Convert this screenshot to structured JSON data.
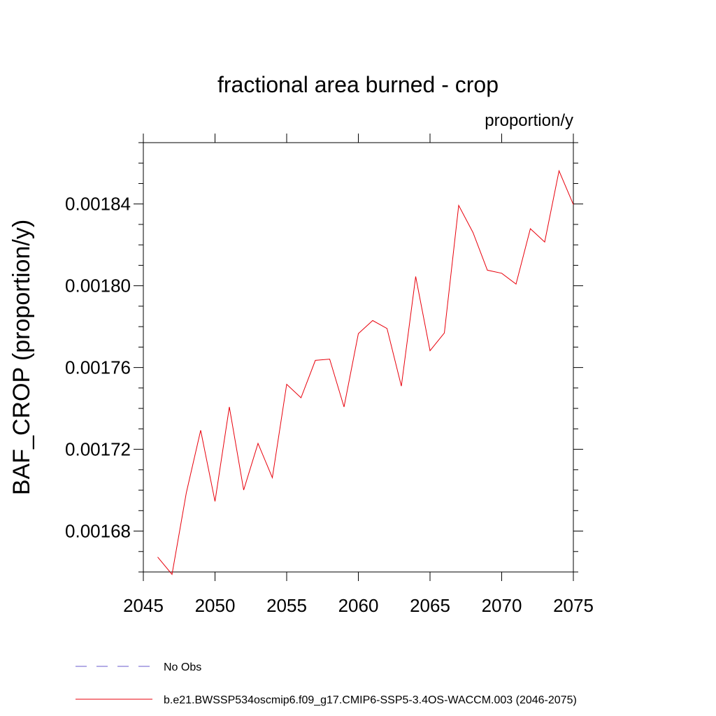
{
  "chart_data": {
    "type": "line",
    "title": "fractional area burned - crop",
    "units_label": "proportion/y",
    "xlabel": "",
    "ylabel": "BAF_CROP  (proportion/y)",
    "xlim": [
      2045,
      2075
    ],
    "ylim": [
      0.00166,
      0.00187
    ],
    "x_ticks": [
      2045,
      2050,
      2055,
      2060,
      2065,
      2070,
      2075
    ],
    "y_ticks": [
      0.00168,
      0.00172,
      0.00176,
      0.0018,
      0.00184
    ],
    "y_tick_labels": [
      "0.00168",
      "0.00172",
      "0.00176",
      "0.00180",
      "0.00184"
    ],
    "y_minor_step": 1e-05,
    "x_minor_step": 1,
    "series": [
      {
        "name": "b.e21.BWSSP534oscmip6.f09_g17.CMIP6-SSP5-3.4OS-WACCM.003 (2046-2075)",
        "color": "#e8000b",
        "dash": "solid",
        "x": [
          2046,
          2047,
          2048,
          2049,
          2050,
          2051,
          2052,
          2053,
          2054,
          2055,
          2056,
          2057,
          2058,
          2059,
          2060,
          2061,
          2062,
          2063,
          2064,
          2065,
          2066,
          2067,
          2068,
          2069,
          2070,
          2071,
          2072,
          2073,
          2074,
          2075
        ],
        "y": [
          0.0016673,
          0.0016588,
          0.0016988,
          0.0017293,
          0.0016945,
          0.0017407,
          0.0017001,
          0.0017229,
          0.0017061,
          0.0017518,
          0.0017452,
          0.0017635,
          0.0017641,
          0.0017407,
          0.0017766,
          0.001783,
          0.0017791,
          0.0017509,
          0.0018045,
          0.0017682,
          0.0017769,
          0.0018393,
          0.001826,
          0.0018076,
          0.0018061,
          0.0018008,
          0.0018279,
          0.0018214,
          0.0018562,
          0.0018397
        ]
      }
    ],
    "legend": [
      {
        "label": "No Obs",
        "color": "#6a5acd",
        "dash": "dashed"
      },
      {
        "label": "b.e21.BWSSP534oscmip6.f09_g17.CMIP6-SSP5-3.4OS-WACCM.003 (2046-2075)",
        "color": "#e8000b",
        "dash": "solid"
      }
    ]
  }
}
